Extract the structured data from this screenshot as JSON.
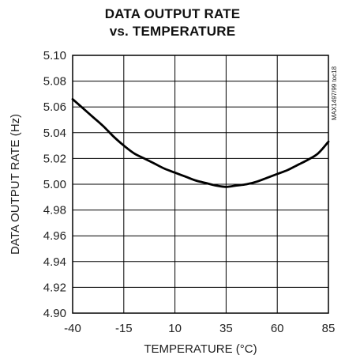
{
  "chart_data": {
    "type": "line",
    "title_line1": "DATA OUTPUT RATE",
    "title_line2": "vs. TEMPERATURE",
    "xlabel": "TEMPERATURE (°C)",
    "ylabel": "DATA OUTPUT RATE (Hz)",
    "xlim": [
      -40,
      85
    ],
    "ylim": [
      4.9,
      5.1
    ],
    "x_ticks": [
      "-40",
      "-15",
      "10",
      "35",
      "60",
      "85"
    ],
    "y_ticks": [
      "5.10",
      "5.08",
      "5.06",
      "5.04",
      "5.02",
      "5.00",
      "4.98",
      "4.96",
      "4.94",
      "4.92",
      "4.90"
    ],
    "grid": true,
    "annotation": "MAX1497/99 toc18",
    "series": [
      {
        "x": [
          -40,
          -35,
          -30,
          -25,
          -20,
          -15,
          -10,
          -5,
          0,
          5,
          10,
          15,
          20,
          25,
          30,
          35,
          40,
          45,
          50,
          55,
          60,
          65,
          70,
          75,
          80,
          85
        ],
        "y": [
          5.066,
          5.059,
          5.052,
          5.045,
          5.037,
          5.03,
          5.024,
          5.02,
          5.016,
          5.012,
          5.009,
          5.006,
          5.003,
          5.001,
          4.999,
          4.998,
          4.999,
          5.0,
          5.002,
          5.005,
          5.008,
          5.011,
          5.015,
          5.019,
          5.024,
          5.033
        ]
      }
    ]
  }
}
